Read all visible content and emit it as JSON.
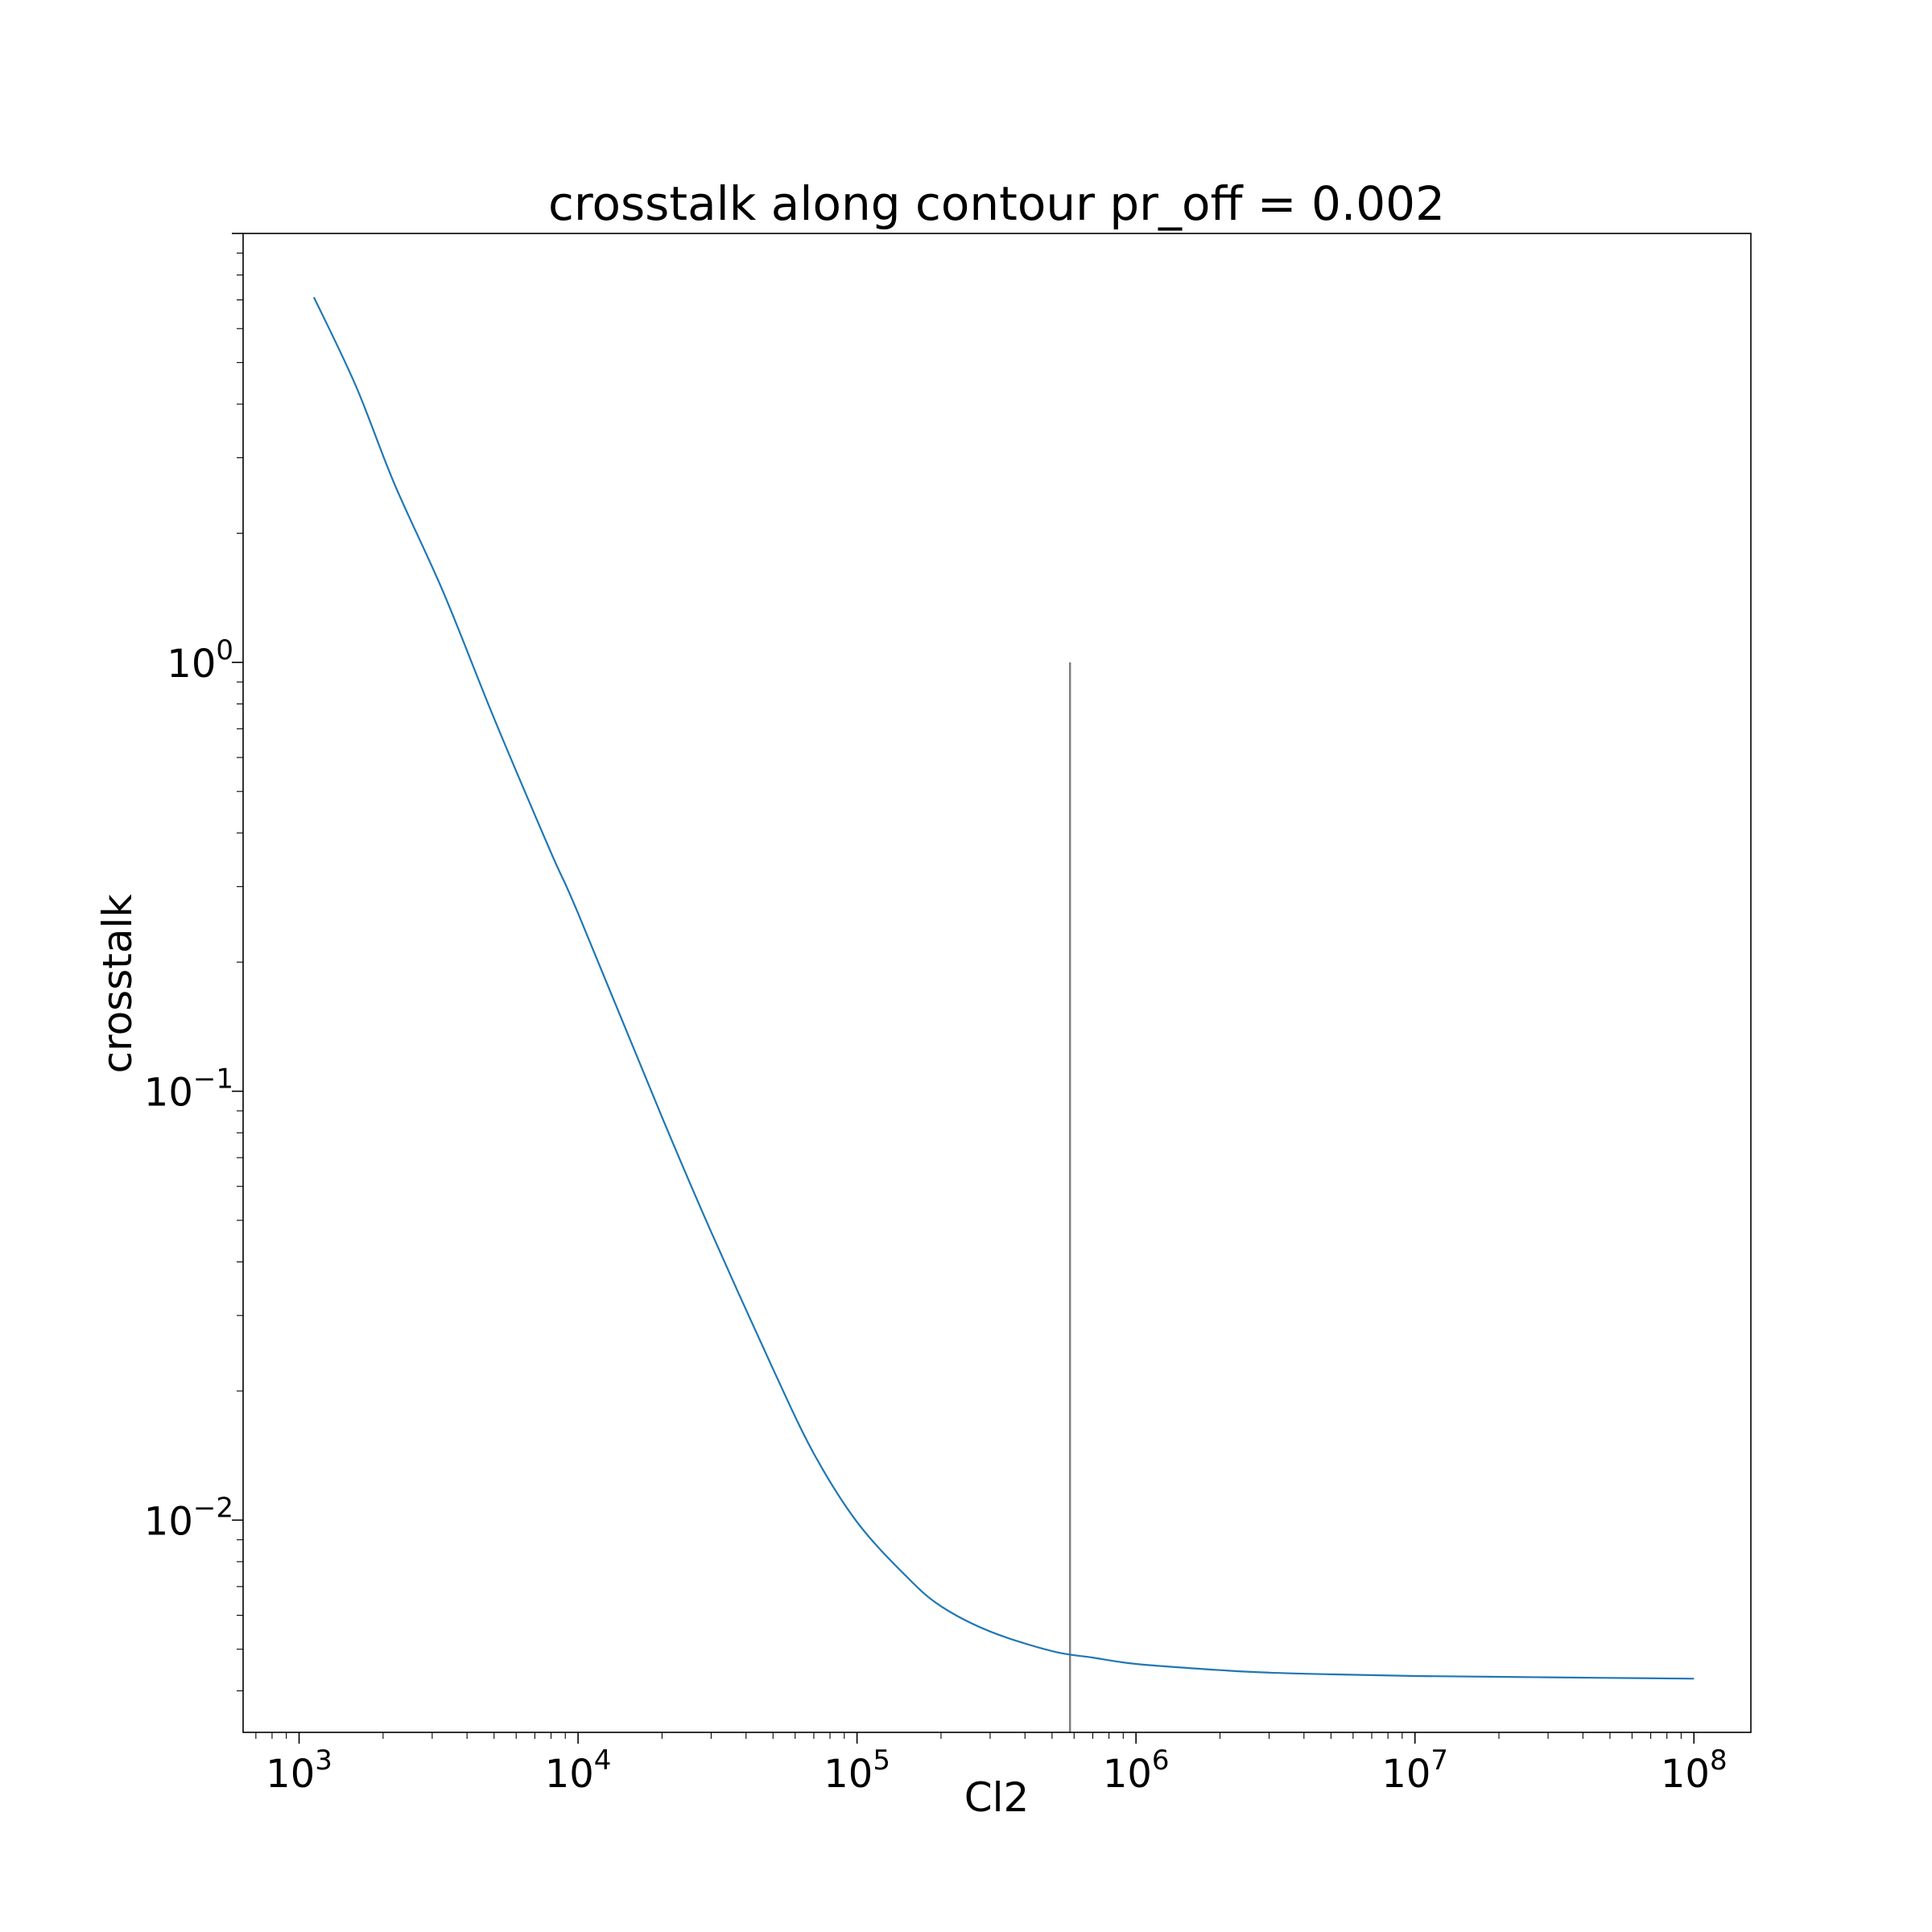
{
  "chart_data": {
    "type": "line",
    "title": "crosstalk along contour pr_off = 0.002",
    "xlabel": "Cl2",
    "ylabel": "crosstalk",
    "xscale": "log",
    "yscale": "log",
    "xlim": [
      630,
      160000000
    ],
    "ylim": [
      0.0032,
      10
    ],
    "grid": false,
    "legend": "none",
    "colors": {
      "curve": "#1f77b4",
      "vline": "#808080",
      "frame": "#000000"
    },
    "x_ticks": [
      {
        "base": "10",
        "exp": "3",
        "value": 1000
      },
      {
        "base": "10",
        "exp": "4",
        "value": 10000
      },
      {
        "base": "10",
        "exp": "5",
        "value": 100000
      },
      {
        "base": "10",
        "exp": "6",
        "value": 1000000
      },
      {
        "base": "10",
        "exp": "7",
        "value": 10000000
      },
      {
        "base": "10",
        "exp": "8",
        "value": 100000000
      }
    ],
    "y_ticks": [
      {
        "base": "10",
        "exp": "0",
        "value": 1
      },
      {
        "base": "10",
        "exp": "−1",
        "value": 0.1
      },
      {
        "base": "10",
        "exp": "−2",
        "value": 0.01
      }
    ],
    "series": [
      {
        "x": [
          1130,
          1600,
          2200,
          3300,
          5000,
          8000,
          10000,
          20000,
          30000,
          50000,
          70000,
          100000,
          150000,
          200000,
          300000,
          500000,
          700000,
          1000000,
          2000000,
          3000000,
          5000000,
          10000000,
          30000000,
          100000000
        ],
        "y": [
          7.1,
          4.4,
          2.6,
          1.45,
          0.74,
          0.36,
          0.26,
          0.087,
          0.047,
          0.0225,
          0.0143,
          0.0099,
          0.0074,
          0.0063,
          0.0055,
          0.00495,
          0.00478,
          0.00462,
          0.00447,
          0.00441,
          0.00437,
          0.00433,
          0.0043,
          0.00427
        ]
      }
    ],
    "vlines": [
      {
        "x": 580000,
        "ymin": 0.0032,
        "ymax": 1
      }
    ]
  }
}
